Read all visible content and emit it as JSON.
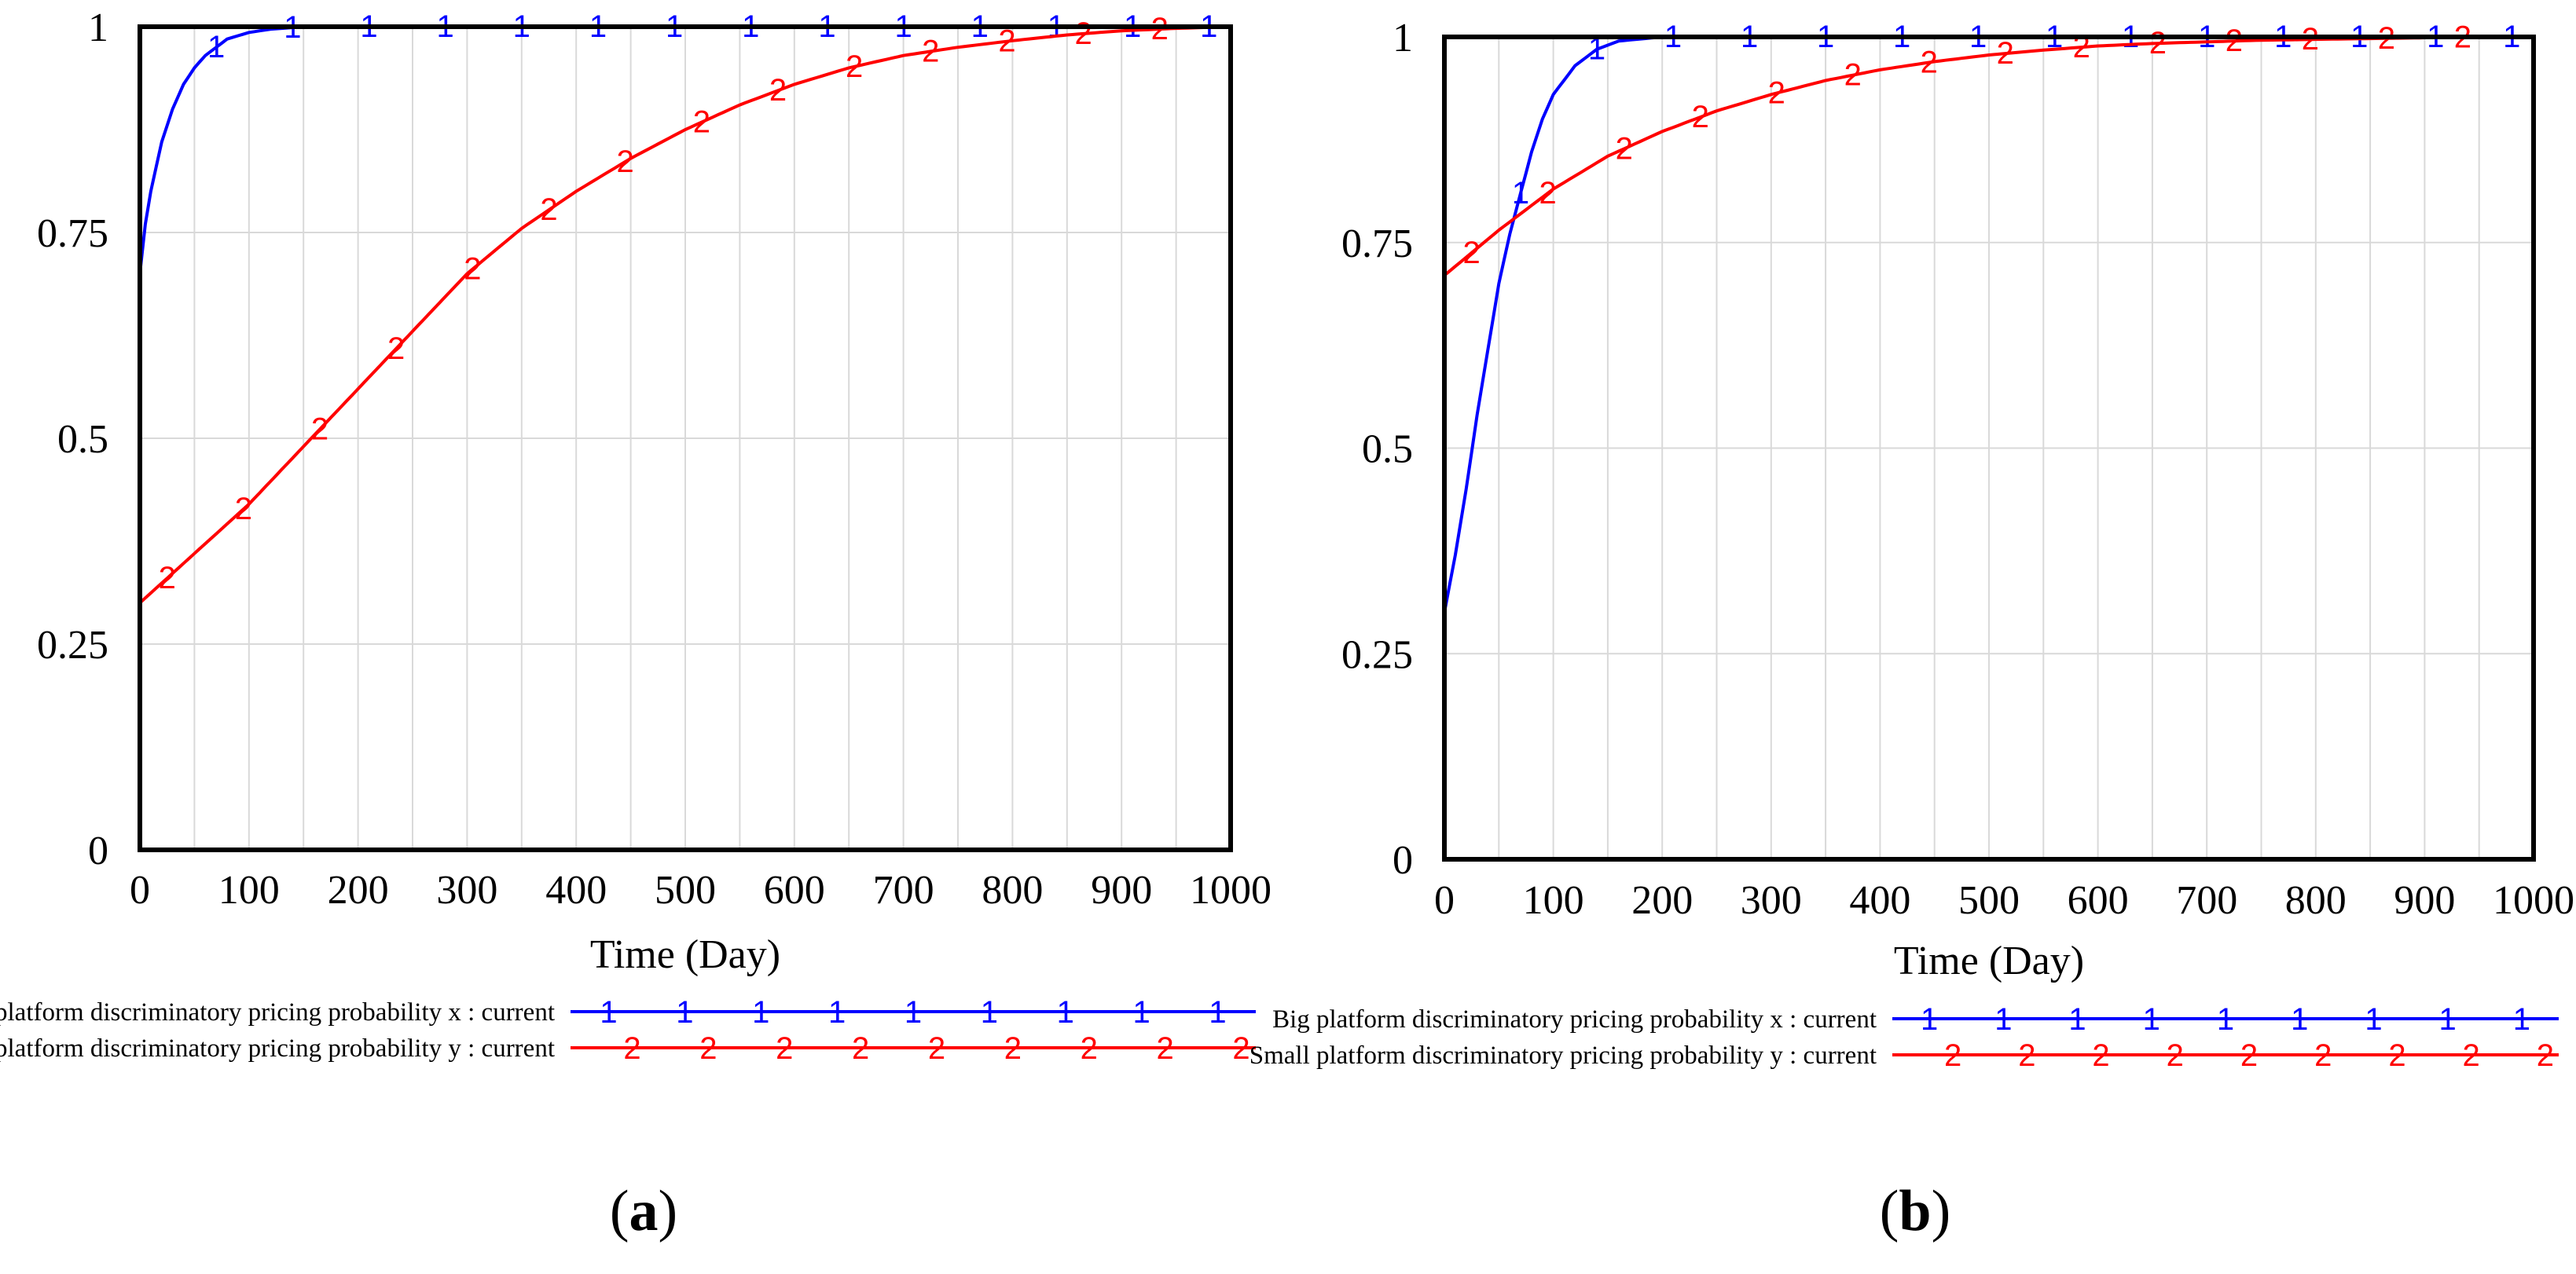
{
  "figure": {
    "panels": [
      {
        "label_letter": "a",
        "label_text": "(a)"
      },
      {
        "label_letter": "b",
        "label_text": "(b)"
      }
    ]
  },
  "colors": {
    "series1": "#0000FF",
    "series2": "#FF0000",
    "axis": "#000000",
    "grid": "#D9D9D9",
    "text": "#000000"
  },
  "chart_data": [
    {
      "type": "line",
      "panel": "a",
      "xlabel": "Time (Day)",
      "ylabel": "",
      "xlim": [
        0,
        1000
      ],
      "ylim": [
        0,
        1
      ],
      "x_ticks": [
        "0",
        "100",
        "200",
        "300",
        "400",
        "500",
        "600",
        "700",
        "800",
        "900",
        "1000"
      ],
      "y_ticks": [
        "0",
        "0.25",
        "0.5",
        "0.75",
        "1"
      ],
      "grid": true,
      "legend_position": "below",
      "series": [
        {
          "name": "Big platform discriminatory pricing probability x : current",
          "marker": "1",
          "x": [
            0,
            5,
            10,
            20,
            30,
            40,
            50,
            60,
            70,
            80,
            100,
            120,
            150,
            200,
            300,
            500,
            700,
            1000
          ],
          "values": [
            0.7,
            0.76,
            0.8,
            0.86,
            0.9,
            0.93,
            0.95,
            0.965,
            0.975,
            0.985,
            0.993,
            0.997,
            1.0,
            1.0,
            1.0,
            1.0,
            1.0,
            1.0
          ]
        },
        {
          "name": "Small platform discriminatory pricing probability y : current",
          "marker": "2",
          "x": [
            0,
            50,
            100,
            150,
            200,
            250,
            300,
            350,
            400,
            450,
            500,
            550,
            600,
            650,
            700,
            750,
            800,
            850,
            900,
            950,
            1000
          ],
          "values": [
            0.3,
            0.36,
            0.42,
            0.49,
            0.56,
            0.63,
            0.7,
            0.755,
            0.8,
            0.84,
            0.875,
            0.905,
            0.93,
            0.95,
            0.965,
            0.975,
            0.983,
            0.99,
            0.995,
            0.998,
            1.0
          ]
        }
      ]
    },
    {
      "type": "line",
      "panel": "b",
      "xlabel": "Time (Day)",
      "ylabel": "",
      "xlim": [
        0,
        1000
      ],
      "ylim": [
        0,
        1
      ],
      "x_ticks": [
        "0",
        "100",
        "200",
        "300",
        "400",
        "500",
        "600",
        "700",
        "800",
        "900",
        "1000"
      ],
      "y_ticks": [
        "0",
        "0.25",
        "0.5",
        "0.75",
        "1"
      ],
      "grid": true,
      "legend_position": "below",
      "series": [
        {
          "name": "Big platform discriminatory pricing probability x : current",
          "marker": "1",
          "x": [
            0,
            10,
            20,
            30,
            40,
            50,
            60,
            70,
            80,
            90,
            100,
            120,
            140,
            160,
            200,
            250,
            1000
          ],
          "values": [
            0.3,
            0.37,
            0.45,
            0.54,
            0.62,
            0.7,
            0.76,
            0.81,
            0.86,
            0.9,
            0.93,
            0.965,
            0.985,
            0.995,
            1.0,
            1.0,
            1.0
          ]
        },
        {
          "name": "Small platform discriminatory pricing probability y : current",
          "marker": "2",
          "x": [
            0,
            50,
            100,
            150,
            200,
            250,
            300,
            350,
            400,
            450,
            500,
            550,
            600,
            650,
            700,
            750,
            800,
            850,
            900,
            950,
            1000
          ],
          "values": [
            0.71,
            0.765,
            0.815,
            0.855,
            0.885,
            0.91,
            0.93,
            0.947,
            0.96,
            0.97,
            0.978,
            0.984,
            0.989,
            0.992,
            0.994,
            0.996,
            0.997,
            0.998,
            0.999,
            1.0,
            1.0
          ]
        }
      ]
    }
  ]
}
